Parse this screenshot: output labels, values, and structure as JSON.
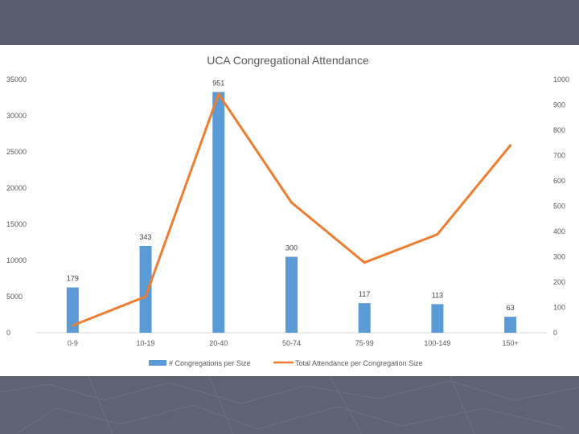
{
  "chart_data": {
    "type": "bar",
    "title": "UCA Congregational Attendance",
    "categories": [
      "0-9",
      "10-19",
      "20-40",
      "50-74",
      "75-99",
      "100-149",
      "150+"
    ],
    "series": [
      {
        "name": "# Congregations per Size",
        "kind": "bar",
        "axis": "right",
        "values": [
          179,
          343,
          951,
          300,
          117,
          113,
          63
        ],
        "data_labels": [
          "179",
          "343",
          "951",
          "300",
          "117",
          "113",
          "63"
        ],
        "color": "#5b9bd5"
      },
      {
        "name": "Total Attendance per Congregation Size",
        "kind": "line",
        "axis": "left",
        "values": [
          1000,
          5000,
          33000,
          18000,
          9700,
          13600,
          25900
        ],
        "color": "#ed7d31"
      }
    ],
    "left_axis": {
      "ylim": [
        0,
        35000
      ],
      "ticks": [
        0,
        5000,
        10000,
        15000,
        20000,
        25000,
        30000,
        35000
      ],
      "tick_labels": [
        "0",
        "5000",
        "10000",
        "15000",
        "20000",
        "25000",
        "30000",
        "35000"
      ]
    },
    "right_axis": {
      "ylim": [
        0,
        1000
      ],
      "ticks": [
        0,
        100,
        200,
        300,
        400,
        500,
        600,
        700,
        800,
        900,
        1000
      ],
      "tick_labels": [
        "0",
        "100",
        "200",
        "300",
        "400",
        "500",
        "600",
        "700",
        "800",
        "900",
        "1000"
      ]
    },
    "legend": {
      "position": "bottom",
      "entries": [
        "# Congregations per Size",
        "Total Attendance per Congregation Size"
      ]
    },
    "grid": false
  }
}
